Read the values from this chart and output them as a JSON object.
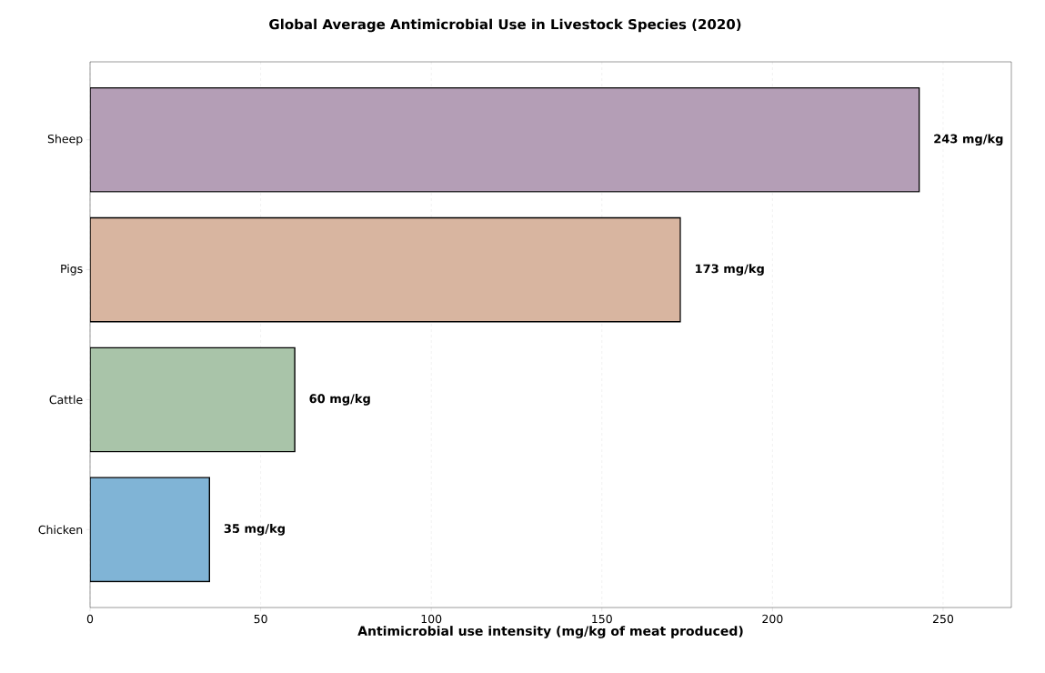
{
  "chart_data": {
    "type": "bar",
    "orientation": "horizontal",
    "title": "Global Average Antimicrobial Use in Livestock Species (2020)",
    "xlabel": "Antimicrobial use intensity (mg/kg of meat produced)",
    "categories": [
      "Sheep",
      "Pigs",
      "Cattle",
      "Chicken"
    ],
    "values": [
      243,
      173,
      60,
      35
    ],
    "value_labels": [
      "243 mg/kg",
      "173 mg/kg",
      "60 mg/kg",
      "35 mg/kg"
    ],
    "colors": [
      "#b49eb6",
      "#d8b5a0",
      "#a9c4a9",
      "#80b4d6"
    ],
    "xlim": [
      0,
      270
    ],
    "xticks": [
      0,
      50,
      100,
      150,
      200,
      250
    ],
    "grid": "x"
  }
}
